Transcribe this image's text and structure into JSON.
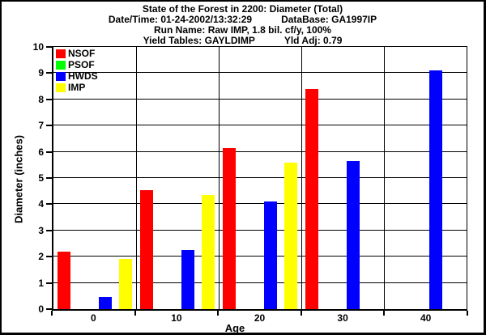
{
  "header": {
    "title": "State of the Forest in 2200: Diameter (Total)",
    "date_time_label": "Date/Time: 01-24-2002/13:32:29",
    "database_label": "DataBase: GA1997IP",
    "run_name_label": "Run Name: Raw IMP, 1.8 bil. cf/y, 100%",
    "yield_tables_label": "Yield Tables: GAYLDIMP",
    "yield_adj_label": "Yld Adj: 0.79"
  },
  "chart_data": {
    "type": "bar",
    "title": "State of the Forest in 2200: Diameter (Total)",
    "categories": [
      "0",
      "10",
      "20",
      "30",
      "40"
    ],
    "series": [
      {
        "name": "NSOF",
        "color": "#ff0000",
        "values": [
          2.2,
          4.55,
          6.15,
          8.4,
          0
        ]
      },
      {
        "name": "PSOF",
        "color": "#00ff00",
        "values": [
          0,
          0,
          0,
          0,
          0
        ]
      },
      {
        "name": "HWDS",
        "color": "#0000ff",
        "values": [
          0.45,
          2.25,
          4.1,
          5.65,
          9.1
        ]
      },
      {
        "name": "IMP",
        "color": "#ffff00",
        "values": [
          1.9,
          4.35,
          5.6,
          0,
          0
        ]
      }
    ],
    "xlabel": "Age",
    "ylabel": "Diameter (inches)",
    "ylim": [
      0,
      10
    ],
    "ytick_step": 1,
    "grid": true,
    "legend_position": "top-left",
    "background": "#ffffff",
    "text_color": "#000000"
  }
}
